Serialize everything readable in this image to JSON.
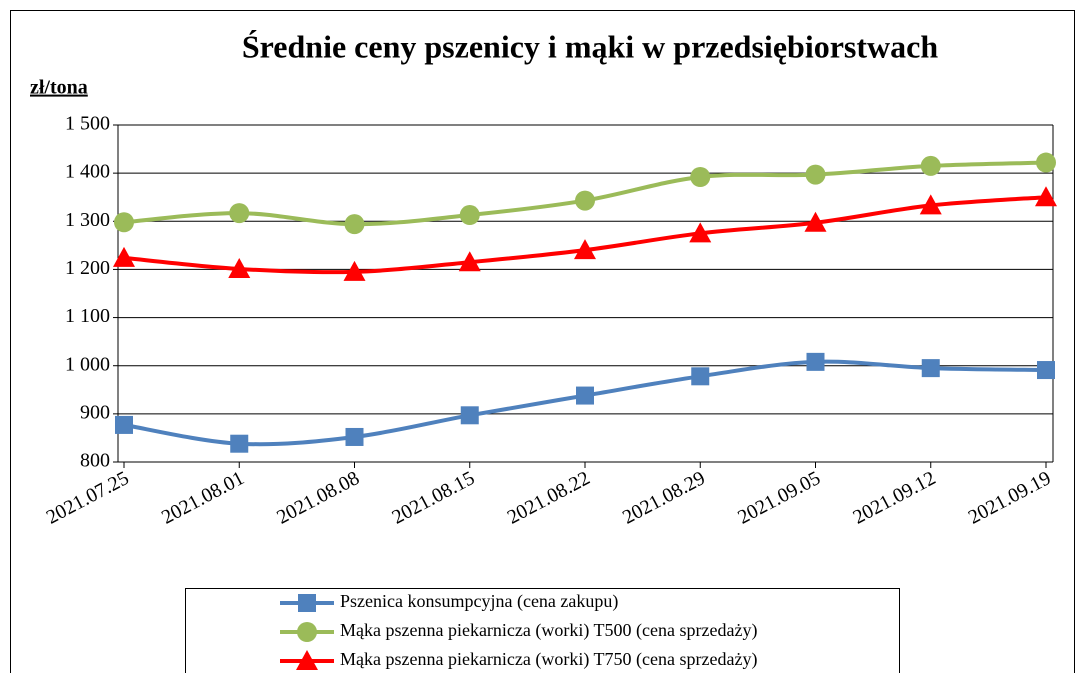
{
  "chart_data": {
    "type": "line",
    "title": "Średnie ceny pszenicy i mąki w przedsiębiorstwach",
    "y_label": "zł/tona",
    "categories": [
      "2021.07.25",
      "2021.08.01",
      "2021.08.08",
      "2021.08.15",
      "2021.08.22",
      "2021.08.29",
      "2021.09.05",
      "2021.09.12",
      "2021.09.19"
    ],
    "series": [
      {
        "name": "Pszenica konsumpcyjna (cena zakupu)",
        "color": "#4f81bd",
        "marker": "square",
        "values": [
          877,
          838,
          852,
          897,
          938,
          978,
          1008,
          995,
          991
        ]
      },
      {
        "name": "Mąka pszenna piekarnicza (worki) T500 (cena sprzedaży)",
        "color": "#9bbb59",
        "marker": "circle",
        "values": [
          1298,
          1317,
          1294,
          1313,
          1343,
          1392,
          1397,
          1415,
          1422
        ]
      },
      {
        "name": "Mąka pszenna piekarnicza (worki) T750 (cena sprzedaży)",
        "color": "#ff0000",
        "marker": "triangle",
        "values": [
          1224,
          1201,
          1195,
          1215,
          1240,
          1275,
          1297,
          1333,
          1350
        ]
      }
    ],
    "ylim": [
      800,
      1500
    ],
    "yticks": [
      800,
      900,
      {
        "value": 1000,
        "label": "1 000"
      },
      {
        "value": 1100,
        "label": "1 100"
      },
      {
        "value": 1200,
        "label": "1 200"
      },
      {
        "value": 1300,
        "label": "1 300"
      },
      {
        "value": 1400,
        "label": "1 400"
      },
      {
        "value": 1500,
        "label": "1 500"
      }
    ],
    "grid": true,
    "smooth": true,
    "legend": "bottom"
  }
}
